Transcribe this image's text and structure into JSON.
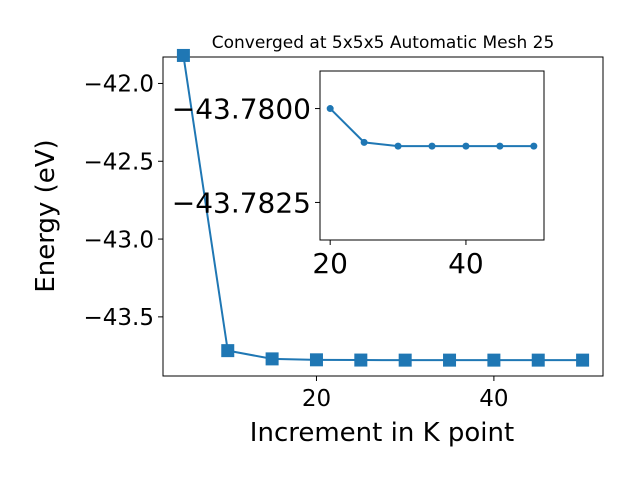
{
  "chart_data": [
    {
      "type": "line",
      "title": "Converged at 5x5x5 Automatic Mesh 25",
      "xlabel": "Increment in K point",
      "ylabel": "Energy (eV)",
      "xlim": [
        2.7,
        52.3
      ],
      "ylim": [
        -43.88,
        -41.83
      ],
      "xticks": [
        20,
        40
      ],
      "xtick_labels": [
        "20",
        "40"
      ],
      "yticks": [
        -42.0,
        -42.5,
        -43.0,
        -43.5
      ],
      "ytick_labels": [
        "−42.0",
        "−42.5",
        "−43.0",
        "−43.5"
      ],
      "marker": "square",
      "color": "#1f77b4",
      "series": [
        {
          "x": [
            5,
            10,
            15,
            20,
            25,
            30,
            35,
            40,
            45,
            50
          ],
          "y": [
            -41.82,
            -43.717,
            -43.77,
            -43.776,
            -43.7775,
            -43.778,
            -43.778,
            -43.778,
            -43.778,
            -43.778
          ]
        }
      ]
    },
    {
      "type": "line",
      "title": "",
      "xlabel": "",
      "ylabel": "",
      "xlim": [
        18.5,
        51.5
      ],
      "ylim": [
        -43.7835,
        -43.779
      ],
      "xticks": [
        20,
        40
      ],
      "xtick_labels": [
        "20",
        "40"
      ],
      "yticks": [
        -43.7825,
        -43.78
      ],
      "ytick_labels": [
        "−43.7825",
        "−43.7800"
      ],
      "marker": "circle",
      "color": "#1f77b4",
      "series": [
        {
          "x": [
            20,
            25,
            30,
            35,
            40,
            45,
            50
          ],
          "y": [
            -43.78,
            -43.7809,
            -43.781,
            -43.781,
            -43.781,
            -43.781,
            -43.781
          ]
        }
      ]
    }
  ]
}
